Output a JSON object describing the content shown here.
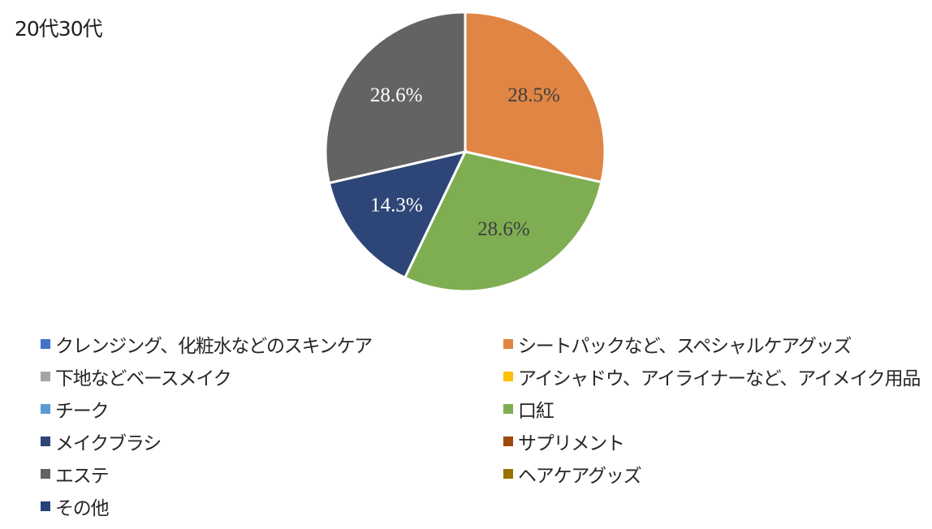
{
  "chart_data": {
    "type": "pie",
    "title": "20代30代",
    "categories": [
      "クレンジング、化粧水などのスキンケア",
      "シートパックなど、スペシャルケアグッズ",
      "下地などベースメイク",
      "アイシャドウ、アイライナーなど、アイメイク用品",
      "チーク",
      "口紅",
      "メイクブラシ",
      "サプリメント",
      "エステ",
      "ヘアケアグッズ",
      "その他"
    ],
    "values": [
      0,
      28.5,
      0,
      0,
      0,
      28.6,
      14.3,
      0,
      28.6,
      0,
      0
    ],
    "data_labels": [
      "",
      "28.5%",
      "",
      "",
      "",
      "28.6%",
      "14.3%",
      "",
      "28.6%",
      "",
      ""
    ],
    "colors": [
      "#4472C4",
      "#E08543",
      "#A5A5A5",
      "#FFC000",
      "#5B9BD5",
      "#7FAE52",
      "#2E4677",
      "#9E480E",
      "#636363",
      "#997300",
      "#264478"
    ],
    "label_colors": [
      "#ffffff",
      "#404040",
      "#ffffff",
      "#404040",
      "#ffffff",
      "#404040",
      "#ffffff",
      "#ffffff",
      "#ffffff",
      "#ffffff",
      "#ffffff"
    ],
    "legend_position": "bottom"
  }
}
